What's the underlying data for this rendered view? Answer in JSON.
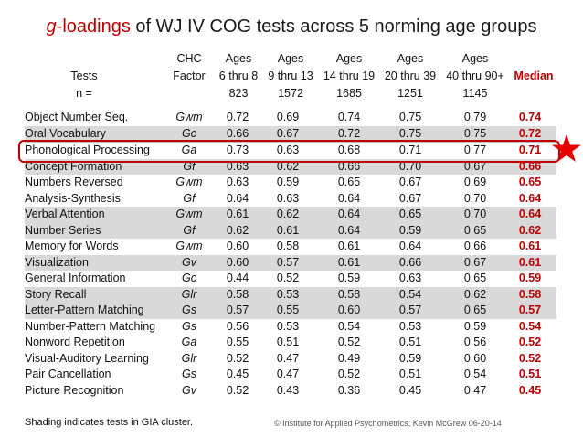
{
  "title": {
    "part1": "g",
    "part2": "-loadings",
    "part3": " of WJ IV COG tests across 5 norming age groups"
  },
  "header": {
    "tests": [
      "",
      "Tests",
      "n ="
    ],
    "factor": [
      "CHC",
      "Factor",
      ""
    ],
    "ages": [
      [
        "Ages",
        "6 thru 8",
        "823"
      ],
      [
        "Ages",
        "9 thru 13",
        "1572"
      ],
      [
        "Ages",
        "14 thru 19",
        "1685"
      ],
      [
        "Ages",
        "20 thru 39",
        "1251"
      ],
      [
        "Ages",
        "40 thru 90+",
        "1145"
      ]
    ],
    "median": "Median"
  },
  "rows": [
    {
      "test": "Object Number Seq.",
      "factor": "Gwm",
      "v": [
        "0.72",
        "0.69",
        "0.74",
        "0.75",
        "0.79"
      ],
      "median": "0.74",
      "shade": false
    },
    {
      "test": "Oral Vocabulary",
      "factor": "Gc",
      "v": [
        "0.66",
        "0.67",
        "0.72",
        "0.75",
        "0.75"
      ],
      "median": "0.72",
      "shade": true
    },
    {
      "test": "Phonological Processing",
      "factor": "Ga",
      "v": [
        "0.73",
        "0.63",
        "0.68",
        "0.71",
        "0.77"
      ],
      "median": "0.71",
      "shade": false
    },
    {
      "test": "Concept Formation",
      "factor": "Gf",
      "v": [
        "0.63",
        "0.62",
        "0.66",
        "0.70",
        "0.67"
      ],
      "median": "0.66",
      "shade": true
    },
    {
      "test": "Numbers Reversed",
      "factor": "Gwm",
      "v": [
        "0.63",
        "0.59",
        "0.65",
        "0.67",
        "0.69"
      ],
      "median": "0.65",
      "shade": false
    },
    {
      "test": "Analysis-Synthesis",
      "factor": "Gf",
      "v": [
        "0.64",
        "0.63",
        "0.64",
        "0.67",
        "0.70"
      ],
      "median": "0.64",
      "shade": false
    },
    {
      "test": "Verbal Attention",
      "factor": "Gwm",
      "v": [
        "0.61",
        "0.62",
        "0.64",
        "0.65",
        "0.70"
      ],
      "median": "0.64",
      "shade": true
    },
    {
      "test": "Number Series",
      "factor": "Gf",
      "v": [
        "0.62",
        "0.61",
        "0.64",
        "0.59",
        "0.65"
      ],
      "median": "0.62",
      "shade": true
    },
    {
      "test": "Memory for Words",
      "factor": "Gwm",
      "v": [
        "0.60",
        "0.58",
        "0.61",
        "0.64",
        "0.66"
      ],
      "median": "0.61",
      "shade": false
    },
    {
      "test": "Visualization",
      "factor": "Gv",
      "v": [
        "0.60",
        "0.57",
        "0.61",
        "0.66",
        "0.67"
      ],
      "median": "0.61",
      "shade": true
    },
    {
      "test": "General Information",
      "factor": "Gc",
      "v": [
        "0.44",
        "0.52",
        "0.59",
        "0.63",
        "0.65"
      ],
      "median": "0.59",
      "shade": false
    },
    {
      "test": "Story Recall",
      "factor": "Glr",
      "v": [
        "0.58",
        "0.53",
        "0.58",
        "0.54",
        "0.62"
      ],
      "median": "0.58",
      "shade": true
    },
    {
      "test": "Letter-Pattern Matching",
      "factor": "Gs",
      "v": [
        "0.57",
        "0.55",
        "0.60",
        "0.57",
        "0.65"
      ],
      "median": "0.57",
      "shade": true
    },
    {
      "test": "Number-Pattern Matching",
      "factor": "Gs",
      "v": [
        "0.56",
        "0.53",
        "0.54",
        "0.53",
        "0.59"
      ],
      "median": "0.54",
      "shade": false
    },
    {
      "test": "Nonword Repetition",
      "factor": "Ga",
      "v": [
        "0.55",
        "0.51",
        "0.52",
        "0.51",
        "0.56"
      ],
      "median": "0.52",
      "shade": false
    },
    {
      "test": "Visual-Auditory Learning",
      "factor": "Glr",
      "v": [
        "0.52",
        "0.47",
        "0.49",
        "0.59",
        "0.60"
      ],
      "median": "0.52",
      "shade": false
    },
    {
      "test": "Pair Cancellation",
      "factor": "Gs",
      "v": [
        "0.45",
        "0.47",
        "0.52",
        "0.51",
        "0.54"
      ],
      "median": "0.51",
      "shade": false
    },
    {
      "test": "Picture Recognition",
      "factor": "Gv",
      "v": [
        "0.52",
        "0.43",
        "0.36",
        "0.45",
        "0.47"
      ],
      "median": "0.45",
      "shade": false
    }
  ],
  "highlight": {
    "color": "#c00000",
    "icon": "star-icon"
  },
  "footnote": "Shading indicates tests in GIA cluster.",
  "credit": "© Institute for Applied Psychometrics;  Kevin McGrew 06-20-14",
  "colors": {
    "accent": "#c00000",
    "shade": "#d9d9d9"
  }
}
